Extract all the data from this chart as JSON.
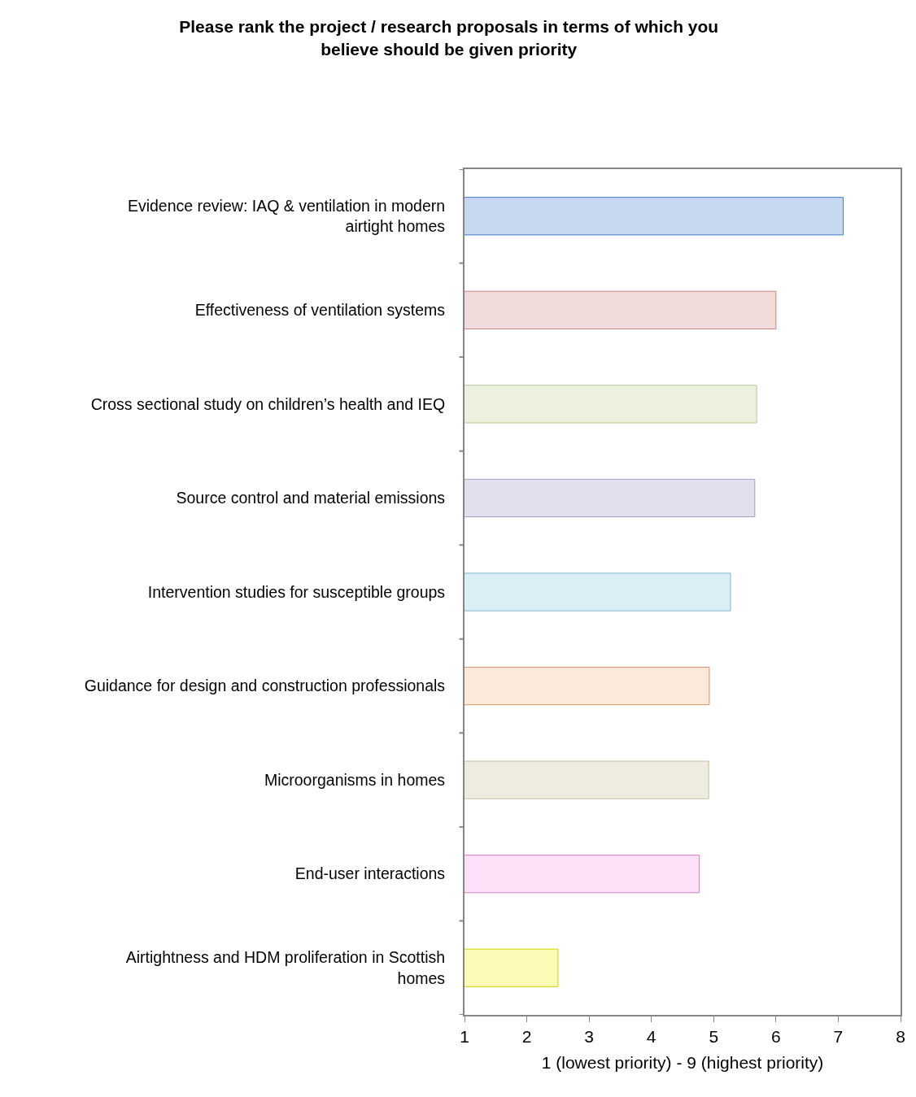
{
  "chart_data": {
    "type": "bar",
    "orientation": "horizontal",
    "title": "Please rank the project / research proposals in terms of which you believe should be given priority",
    "xlabel": "1 (lowest priority) - 9 (highest priority)",
    "categories": [
      "Evidence review: IAQ & ventilation in modern airtight homes",
      "Effectiveness of ventilation systems",
      "Cross sectional study on children’s health and IEQ",
      "Source control and material emissions",
      "Intervention studies for susceptible groups",
      "Guidance for design and construction professionals",
      "Microorganisms in homes",
      "End-user interactions",
      "Airtightness and HDM proliferation in Scottish homes"
    ],
    "values": [
      7.08,
      6.0,
      5.69,
      5.66,
      5.27,
      4.93,
      4.92,
      4.77,
      2.5
    ],
    "colors": [
      "#c6d9f1",
      "#f2dcdb",
      "#ebf1de",
      "#e4dfec",
      "#dbeef4",
      "#fde9d9",
      "#eeece1",
      "#fbe0f7",
      "#fbfbb5"
    ],
    "xlim": [
      1,
      8
    ],
    "xticks": [
      1,
      2,
      3,
      4,
      5,
      6,
      7,
      8
    ]
  }
}
